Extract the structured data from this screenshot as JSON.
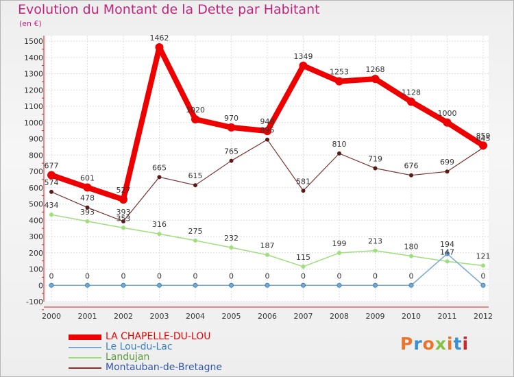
{
  "title": "Evolution du Montant de la Dette par Habitant",
  "unit": "(en €)",
  "brand": {
    "text": "Proxiti",
    "colors": [
      "#e8752a",
      "#3a8fd0",
      "#e8752a",
      "#83c341",
      "#e8752a",
      "#3a8fd0",
      "#c7282a"
    ]
  },
  "chart_data": {
    "type": "line",
    "title": "Evolution du Montant de la Dette par Habitant",
    "ylabel": "(en €)",
    "ylim": [
      -100,
      1500
    ],
    "y_ticks": [
      -100,
      0,
      100,
      200,
      300,
      400,
      500,
      600,
      700,
      800,
      900,
      1000,
      1100,
      1200,
      1300,
      1400,
      1500
    ],
    "x": [
      "2000",
      "2001",
      "2002",
      "2003",
      "2004",
      "2005",
      "2006",
      "2007",
      "2008",
      "2009",
      "2010",
      "2011",
      "2012"
    ],
    "grid": true,
    "legend_position": "bottom-left",
    "series": [
      {
        "name": "LA CHAPELLE-DU-LOU",
        "color": "#ee0000",
        "label_color": "#333333",
        "width": 8,
        "values": [
          677,
          601,
          527,
          1462,
          1020,
          970,
          948,
          1349,
          1253,
          1268,
          1128,
          1000,
          859
        ]
      },
      {
        "name": "Le Lou-du-Lac",
        "color": "#7aa9cd",
        "label_color": "#333333",
        "width": 1.5,
        "values": [
          0,
          0,
          0,
          0,
          0,
          0,
          0,
          0,
          0,
          0,
          0,
          194,
          0
        ]
      },
      {
        "name": "Landujan",
        "color": "#9ddf7a",
        "label_color": "#333333",
        "width": 1.5,
        "values": [
          434,
          393,
          353,
          316,
          275,
          232,
          187,
          115,
          199,
          213,
          180,
          147,
          121
        ]
      },
      {
        "name": "Montauban-de-Bretagne",
        "color": "#7a3333",
        "label_color": "#333333",
        "width": 1.2,
        "values": [
          574,
          478,
          393,
          665,
          615,
          765,
          895,
          581,
          810,
          719,
          676,
          699,
          845
        ]
      }
    ]
  }
}
